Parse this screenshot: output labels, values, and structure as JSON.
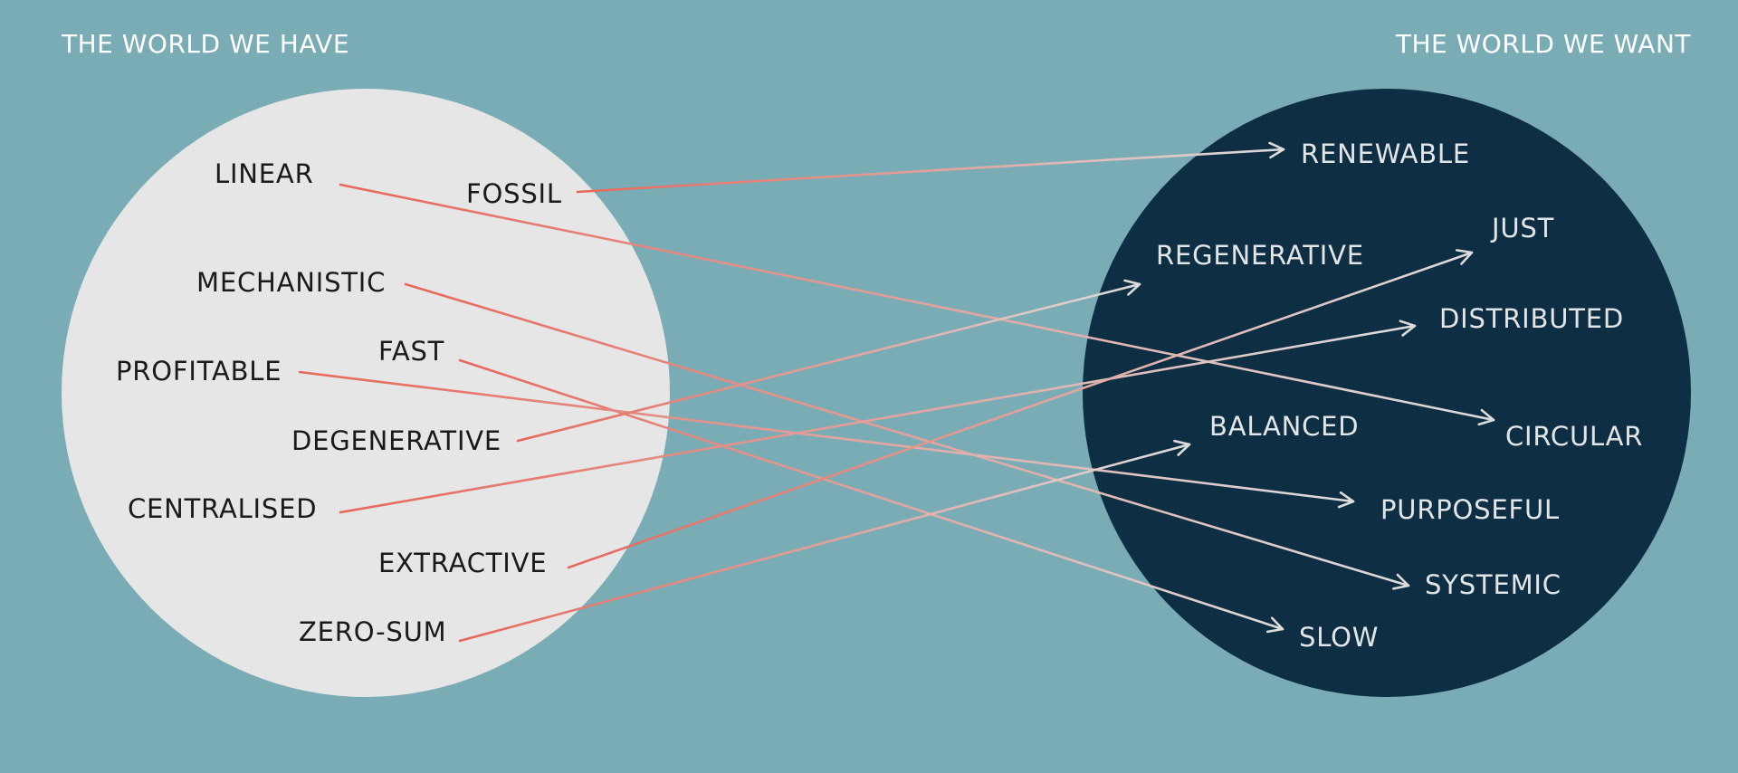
{
  "headings": {
    "left": "THE WORLD WE HAVE",
    "right": "THE WORLD WE WANT"
  },
  "colors": {
    "background": "#7aacb5",
    "left_circle": "#e6e6e6",
    "right_circle": "#0e2e44",
    "arrow_start": "#e8675a",
    "arrow_end": "#dcdcdc"
  },
  "words_left": [
    "LINEAR",
    "FOSSIL",
    "MECHANISTIC",
    "FAST",
    "PROFITABLE",
    "DEGENERATIVE",
    "CENTRALISED",
    "EXTRACTIVE",
    "ZERO-SUM"
  ],
  "words_right": [
    "RENEWABLE",
    "JUST",
    "REGENERATIVE",
    "DISTRIBUTED",
    "BALANCED",
    "CIRCULAR",
    "PURPOSEFUL",
    "SYSTEMIC",
    "SLOW"
  ],
  "mappings": [
    {
      "from": "FOSSIL",
      "to": "RENEWABLE"
    },
    {
      "from": "LINEAR",
      "to": "CIRCULAR"
    },
    {
      "from": "MECHANISTIC",
      "to": "SYSTEMIC"
    },
    {
      "from": "FAST",
      "to": "SLOW"
    },
    {
      "from": "PROFITABLE",
      "to": "PURPOSEFUL"
    },
    {
      "from": "DEGENERATIVE",
      "to": "REGENERATIVE"
    },
    {
      "from": "CENTRALISED",
      "to": "DISTRIBUTED"
    },
    {
      "from": "EXTRACTIVE",
      "to": "JUST"
    },
    {
      "from": "ZERO-SUM",
      "to": "BALANCED"
    }
  ]
}
